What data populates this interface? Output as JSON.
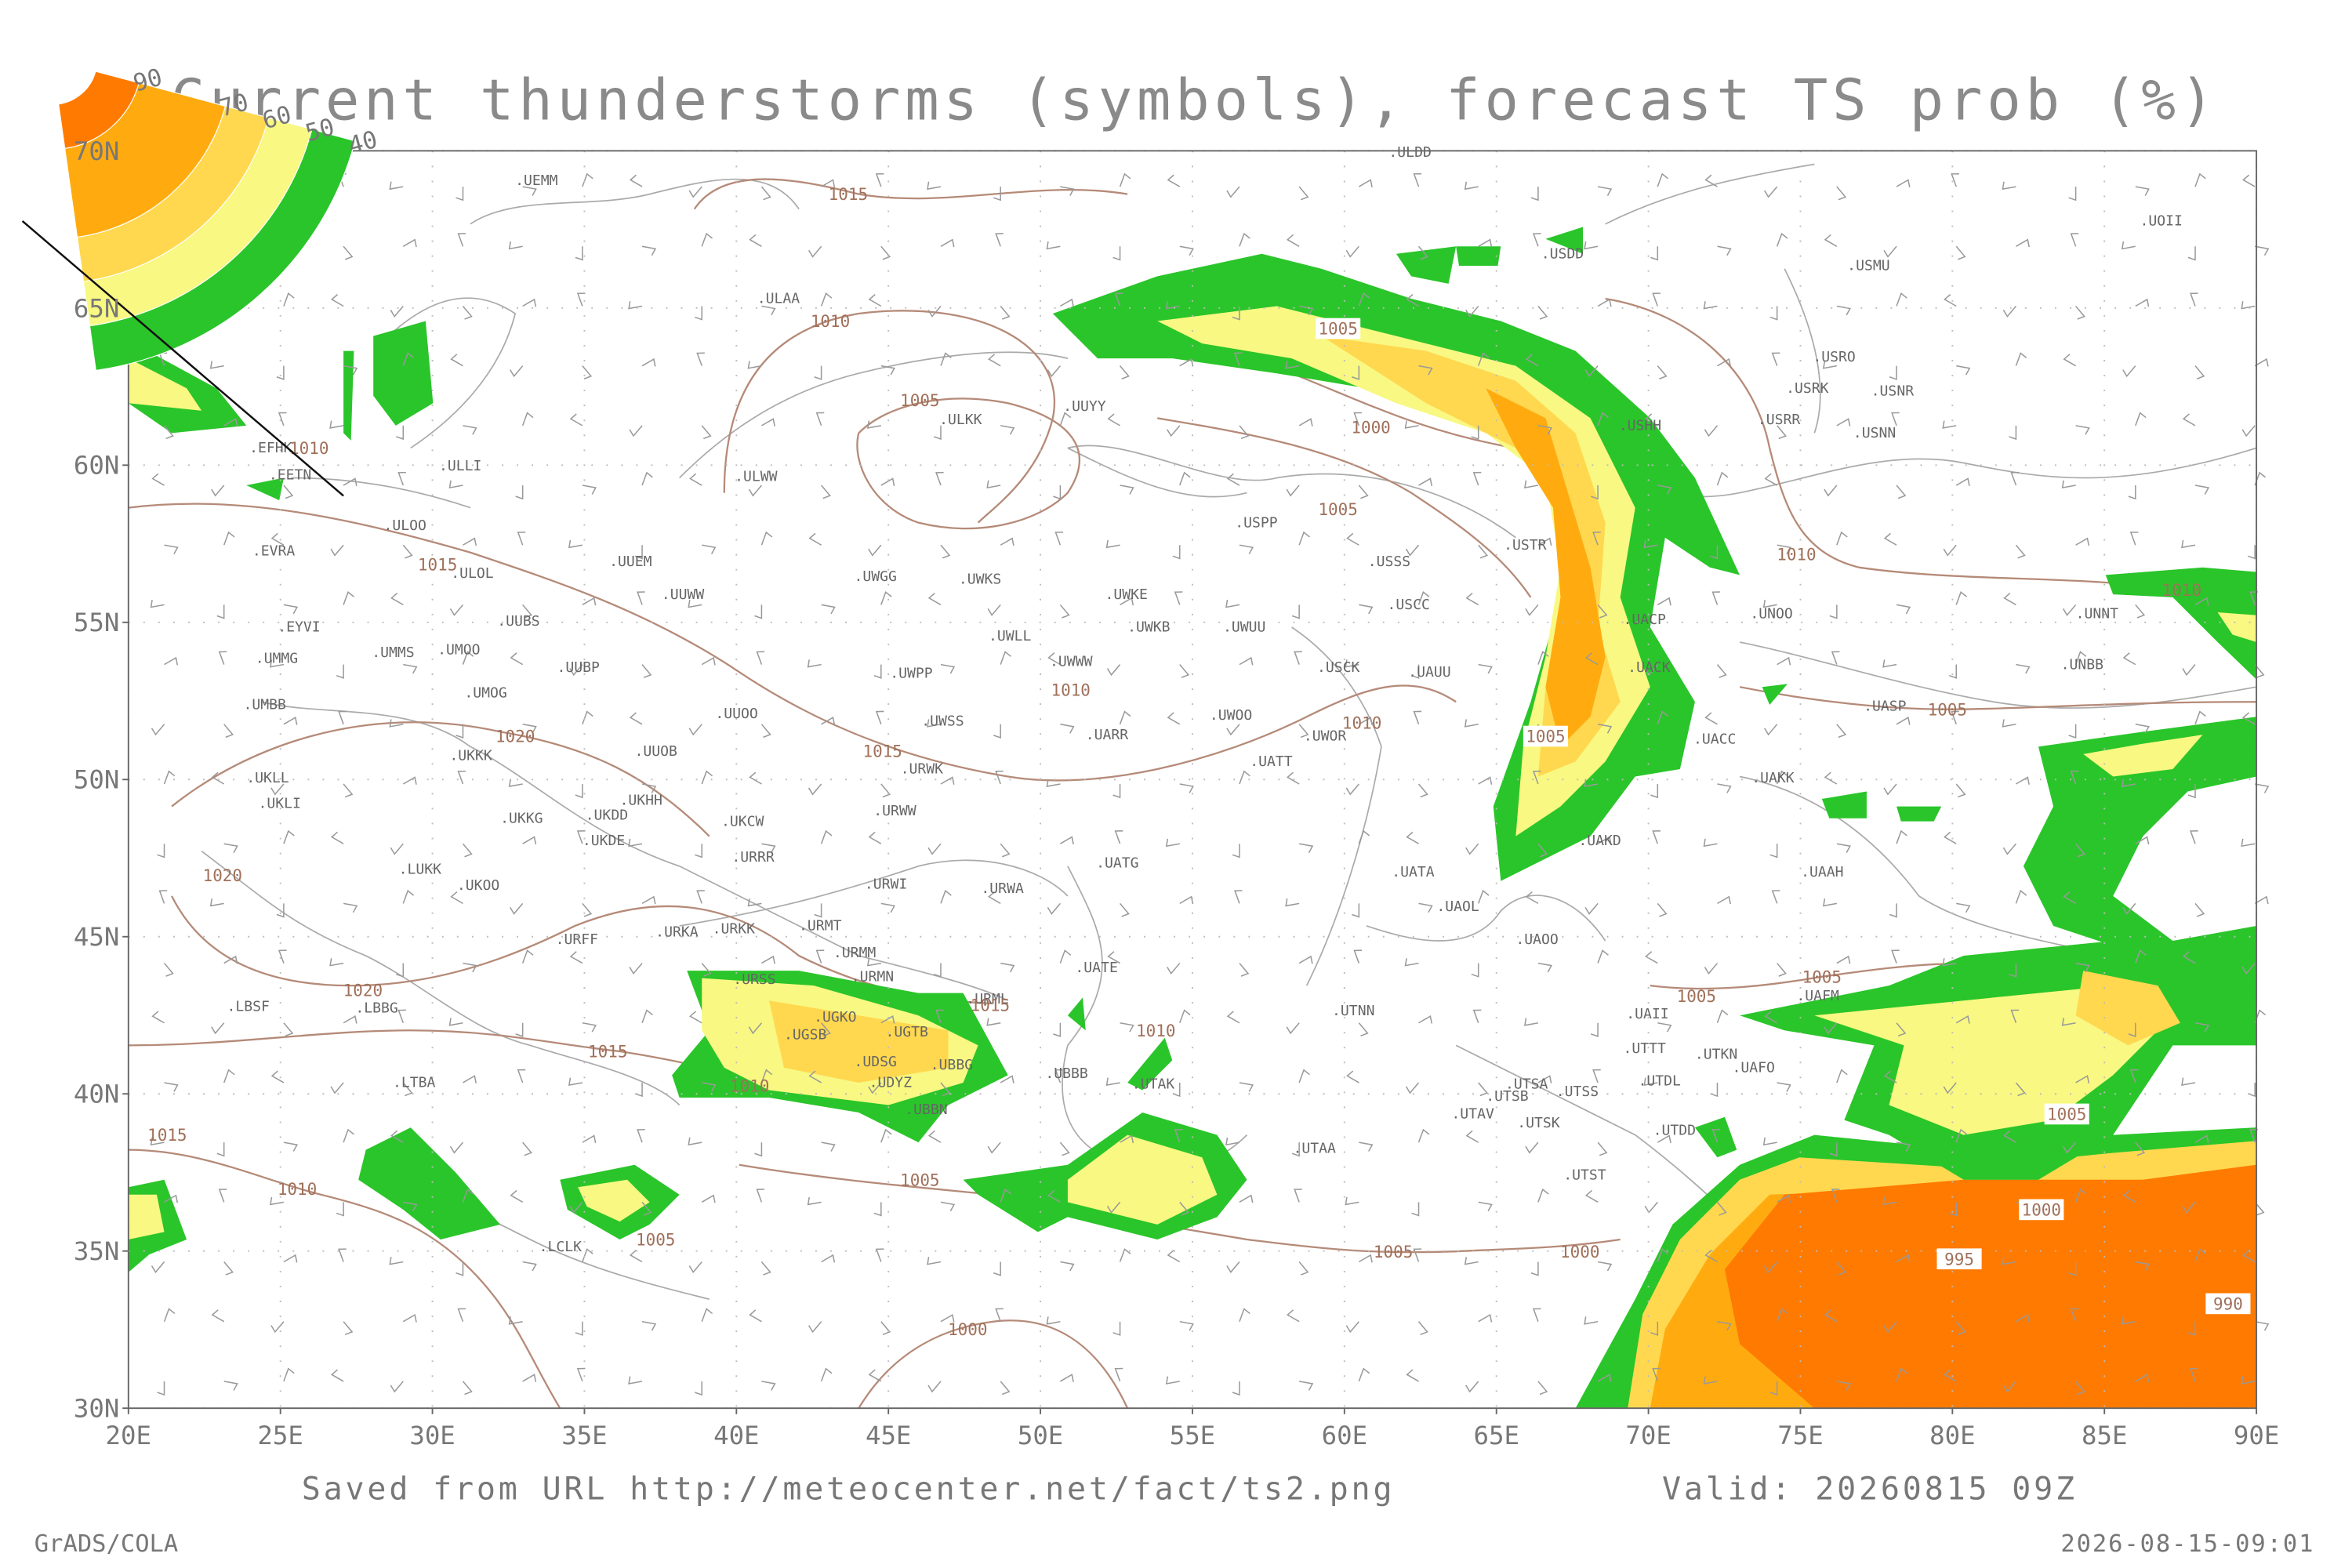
{
  "map": {
    "title": "Current thunderstorms (symbols), forecast TS prob (%)",
    "xlim": [
      20,
      90
    ],
    "ylim": [
      30,
      70
    ],
    "xticks": [
      {
        "value": 20,
        "label": "20E"
      },
      {
        "value": 25,
        "label": "25E"
      },
      {
        "value": 30,
        "label": "30E"
      },
      {
        "value": 35,
        "label": "35E"
      },
      {
        "value": 40,
        "label": "40E"
      },
      {
        "value": 45,
        "label": "45E"
      },
      {
        "value": 50,
        "label": "50E"
      },
      {
        "value": 55,
        "label": "55E"
      },
      {
        "value": 60,
        "label": "60E"
      },
      {
        "value": 65,
        "label": "65E"
      },
      {
        "value": 70,
        "label": "70E"
      },
      {
        "value": 75,
        "label": "75E"
      },
      {
        "value": 80,
        "label": "80E"
      },
      {
        "value": 85,
        "label": "85E"
      },
      {
        "value": 90,
        "label": "90E"
      }
    ],
    "yticks": [
      {
        "value": 30,
        "label": "30N"
      },
      {
        "value": 35,
        "label": "35N"
      },
      {
        "value": 40,
        "label": "40N"
      },
      {
        "value": 45,
        "label": "45N"
      },
      {
        "value": 50,
        "label": "50N"
      },
      {
        "value": 55,
        "label": "55N"
      },
      {
        "value": 60,
        "label": "60N"
      },
      {
        "value": 65,
        "label": "65N"
      },
      {
        "value": 70,
        "label": "70N"
      }
    ],
    "grid": true,
    "legend": {
      "levels": [
        40,
        50,
        60,
        70,
        90
      ],
      "colors": [
        "#2ac52a",
        "#f8f882",
        "#ffd850",
        "#ffab10",
        "#ff7a00"
      ]
    },
    "stations": [
      ".ULDD",
      ".UEMM",
      ".ULAA",
      ".ULLI",
      ".ULOO",
      ".ULOL",
      ".UUEM",
      ".UUWW",
      ".UUBS",
      ".UMMS",
      ".UMOO",
      ".UMMG",
      ".EYVI",
      ".EVRA",
      ".EFHK",
      ".EETN",
      ".UMBB",
      ".UMOG",
      ".UUBP",
      ".UUOO",
      ".UUOB",
      ".UKKK",
      ".UKLL",
      ".UKLI",
      ".UKKG",
      ".UKDD",
      ".UKHH",
      ".UKDE",
      ".UKCW",
      ".URRR",
      ".LUKK",
      ".UKOO",
      ".URFF",
      ".URKA",
      ".URKK",
      ".URMT",
      ".URMM",
      ".URMN",
      ".URSS",
      ".UGKO",
      ".UGTB",
      ".UGSB",
      ".UDSG",
      ".UBBG",
      ".UDYZ",
      ".UBBN",
      ".LBBG",
      ".LBSF",
      ".LTBA",
      ".LCLK",
      ".UBBB",
      ".UTAK",
      ".UTAA",
      ".URML",
      ".UATE",
      ".UATG",
      ".URWA",
      ".URWI",
      ".URWW",
      ".URWK",
      ".UWSS",
      ".UWPP",
      ".UWWW",
      ".UWLL",
      ".UWKE",
      ".UWKB",
      ".UWUU",
      ".UWGG",
      ".UWKS",
      ".UARR",
      ".UWOO",
      ".UWOR",
      ".UATT",
      ".USCK",
      ".USCC",
      ".USSS",
      ".USPP",
      ".UUYY",
      ".ULKK",
      ".ULWW",
      ".USTR",
      ".USHH",
      ".UACP",
      ".UACK",
      ".UAUU",
      ".UACC",
      ".UAKK",
      ".UAKD",
      ".UATA",
      ".UAOL",
      ".UAOO",
      ".UAII",
      ".UTTT",
      ".UTDL",
      ".UTDD",
      ".UTSA",
      ".UTSB",
      ".UTAV",
      ".UTSK",
      ".UTSS",
      ".UTST",
      ".UTNN",
      ".UTKN",
      ".UAFO",
      ".UAFM",
      ".UAAH",
      ".UASP",
      ".UNOO",
      ".UNNT",
      ".UNBB",
      ".USNN",
      ".USRR",
      ".USRK",
      ".USNR",
      ".USRO",
      ".USMU",
      ".UOII",
      ".USDD"
    ],
    "isobar_labels": [
      1015,
      1010,
      1005,
      1000,
      1005,
      1005,
      1010,
      1010,
      1005,
      1005,
      1010,
      1010,
      1015,
      1020,
      1015,
      1010,
      1020,
      1020,
      1015,
      1010,
      1015,
      1010,
      1005,
      1005,
      1000,
      1005,
      1000,
      1005,
      1005,
      1005,
      1000,
      995,
      990,
      1015,
      1010
    ],
    "footer": {
      "source": "Saved from URL http://meteocenter.net/fact/ts2.png",
      "valid": "Valid: 20260815 09Z",
      "credit": "GrADS/COLA",
      "timestamp": "2026-08-15-09:01"
    }
  }
}
